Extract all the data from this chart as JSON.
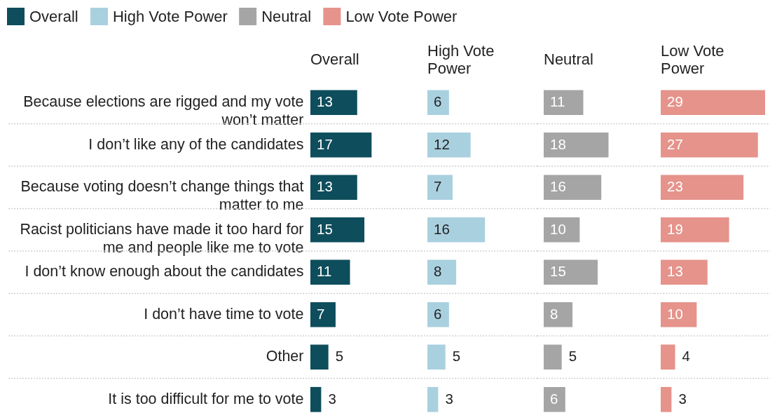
{
  "chart_data": [
    {
      "type": "bar",
      "orientation": "horizontal",
      "title": "Overall",
      "categories": [
        "Because elections are rigged and my vote won’t matter",
        "I don’t like any of the candidates",
        "Because voting doesn’t change things that matter to me",
        "Racist politicians have made it too hard for me and people like me to vote",
        "I don’t know enough about the candidates",
        "I don’t have time to vote",
        "Other",
        "It is too difficult for me to vote"
      ],
      "series": [
        {
          "name": "Overall",
          "color": "#0e4d5c",
          "values": [
            13,
            17,
            13,
            15,
            11,
            7,
            5,
            3
          ]
        }
      ],
      "data_labels": true,
      "legend": "top",
      "grid": "y"
    },
    {
      "type": "bar",
      "orientation": "horizontal",
      "title": "High Vote Power",
      "categories": [
        null,
        null,
        null,
        null,
        null,
        null,
        null,
        null
      ],
      "series": [
        {
          "name": "High Vote Power",
          "color": "#a9d0df",
          "values": [
            6,
            12,
            7,
            16,
            8,
            6,
            5,
            3
          ]
        }
      ],
      "data_labels": true,
      "legend": "top",
      "grid": "y"
    },
    {
      "type": "bar",
      "orientation": "horizontal",
      "title": "Neutral",
      "categories": [
        null,
        null,
        null,
        null,
        null,
        null,
        null,
        null
      ],
      "series": [
        {
          "name": "Neutral",
          "color": "#a5a5a5",
          "values": [
            11,
            18,
            16,
            10,
            15,
            8,
            5,
            6
          ]
        }
      ],
      "data_labels": true,
      "legend": "top",
      "grid": "y"
    },
    {
      "type": "bar",
      "orientation": "horizontal",
      "title": "Low Vote Power",
      "categories": [
        null,
        null,
        null,
        null,
        null,
        null,
        null,
        null
      ],
      "series": [
        {
          "name": "Low Vote Power",
          "color": "#e5938b",
          "values": [
            29,
            27,
            23,
            19,
            13,
            10,
            4,
            3
          ]
        }
      ],
      "data_labels": true,
      "legend": "top",
      "grid": "y"
    }
  ]
}
